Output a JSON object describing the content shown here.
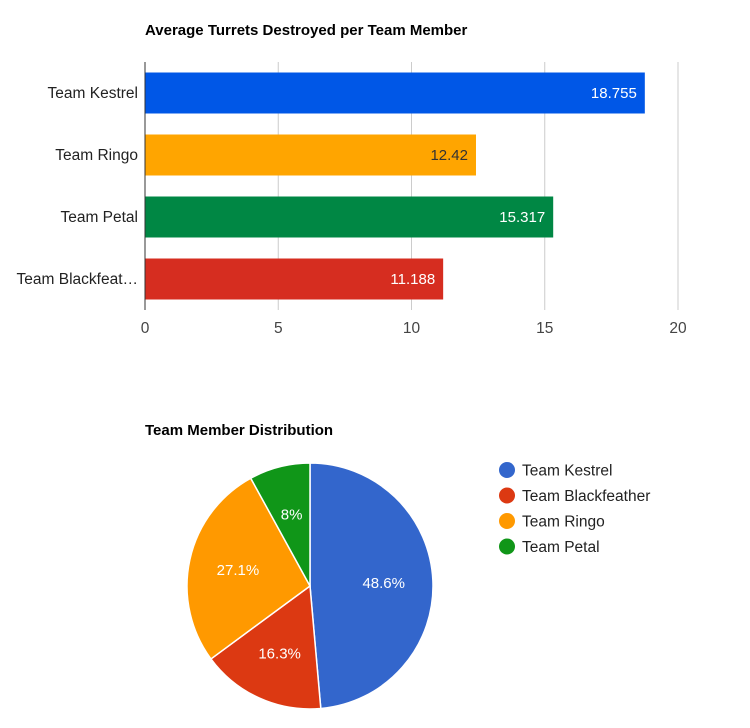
{
  "chart_data": [
    {
      "type": "bar",
      "orientation": "horizontal",
      "title": "Average Turrets Destroyed per Team Member",
      "categories": [
        "Team Kestrel",
        "Team Ringo",
        "Team Petal",
        "Team Blackfeat…"
      ],
      "values": [
        18.755,
        12.42,
        15.317,
        11.188
      ],
      "value_labels": [
        "18.755",
        "12.42",
        "15.317",
        "11.188"
      ],
      "colors": [
        "#0057e7",
        "#ffa500",
        "#008744",
        "#d62d20"
      ],
      "value_label_colors": [
        "#ffffff",
        "#333333",
        "#ffffff",
        "#ffffff"
      ],
      "xlim": [
        0,
        20
      ],
      "xticks": [
        0,
        5,
        10,
        15,
        20
      ],
      "xtick_labels": [
        "0",
        "5",
        "10",
        "15",
        "20"
      ],
      "grid": true
    },
    {
      "type": "pie",
      "title": "Team Member Distribution",
      "slices": [
        {
          "name": "Team Kestrel",
          "value": 48.6,
          "label": "48.6%",
          "color": "#3366cc"
        },
        {
          "name": "Team Blackfeather",
          "value": 16.3,
          "label": "16.3%",
          "color": "#dc3912"
        },
        {
          "name": "Team Ringo",
          "value": 27.1,
          "label": "27.1%",
          "color": "#ff9900"
        },
        {
          "name": "Team Petal",
          "value": 8.0,
          "label": "8%",
          "color": "#109618"
        }
      ],
      "legend_position": "right"
    }
  ]
}
